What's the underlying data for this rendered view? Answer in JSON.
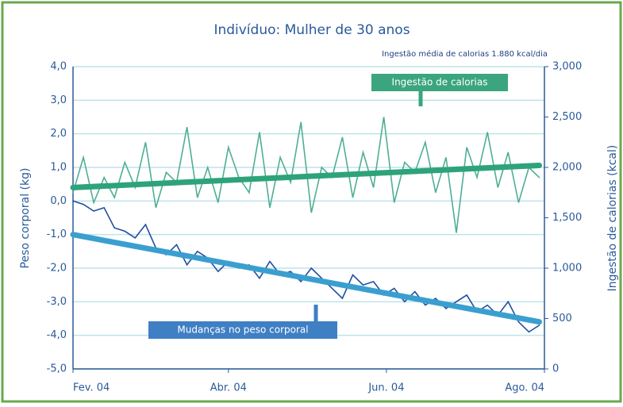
{
  "chart_data": {
    "type": "line",
    "title": "Indivíduo: Mulher de 30 anos",
    "subtitle": "Ingestão média de calorias 1.880 kcal/dia",
    "y_label": "Peso corporal (kg)",
    "y2_label": "Ingestão de calorias (kcal)",
    "x": [
      0,
      4,
      8,
      12,
      16,
      20,
      24,
      28,
      32,
      36,
      40,
      44,
      48,
      52,
      56,
      60,
      64,
      68,
      72,
      76,
      80,
      84,
      88,
      92,
      96,
      100,
      104,
      108,
      112,
      116,
      120,
      124,
      128,
      132,
      136,
      140,
      144,
      148,
      152,
      156,
      160,
      164,
      168,
      172,
      176,
      180
    ],
    "xlim": [
      0,
      182
    ],
    "xticks": [
      {
        "value": 0,
        "label": "Fev. 04"
      },
      {
        "value": 60,
        "label": "Abr. 04"
      },
      {
        "value": 121,
        "label": "Jun. 04"
      },
      {
        "value": 182,
        "label": "Ago. 04"
      }
    ],
    "ylim": [
      -5,
      4
    ],
    "yticks": [
      {
        "value": -5,
        "label": "-5,0"
      },
      {
        "value": -4,
        "label": "-4,0"
      },
      {
        "value": -3,
        "label": "-3,0"
      },
      {
        "value": -2,
        "label": "-2,0"
      },
      {
        "value": -1,
        "label": "-1,0"
      },
      {
        "value": 0,
        "label": "0,0"
      },
      {
        "value": 1,
        "label": "1,0"
      },
      {
        "value": 2,
        "label": "2,0"
      },
      {
        "value": 3,
        "label": "3,0"
      },
      {
        "value": 4,
        "label": "4,0"
      }
    ],
    "y2lim": [
      0,
      3000
    ],
    "y2ticks": [
      0,
      {
        "value": 500,
        "label": "500"
      },
      {
        "value": 1000,
        "label": "1,000"
      },
      {
        "value": 1500,
        "label": "1,500"
      },
      {
        "value": 2000,
        "label": "2,000"
      },
      {
        "value": 2500,
        "label": "2,500"
      },
      {
        "value": 3000,
        "label": "3,000"
      }
    ],
    "grid": true,
    "series": [
      {
        "name": "Mudanças no peso corporal",
        "color": "#1f4f9f",
        "values": [
          0,
          -0.1,
          -0.3,
          -0.2,
          -0.8,
          -0.9,
          -1.1,
          -0.7,
          -1.4,
          -1.6,
          -1.3,
          -1.9,
          -1.5,
          -1.7,
          -2.1,
          -1.8,
          -2.0,
          -1.9,
          -2.3,
          -1.8,
          -2.2,
          -2.1,
          -2.4,
          -2.0,
          -2.3,
          -2.6,
          -2.9,
          -2.2,
          -2.5,
          -2.4,
          -2.8,
          -2.6,
          -3.0,
          -2.7,
          -3.1,
          -2.9,
          -3.2,
          -3.0,
          -2.8,
          -3.3,
          -3.1,
          -3.4,
          -3.0,
          -3.6,
          -3.9,
          -3.7
        ]
      },
      {
        "name": "Ingestão de calorias",
        "color": "#4fae96",
        "axis": "y2",
        "values": [
          1750,
          2100,
          1650,
          1900,
          1700,
          2050,
          1800,
          2250,
          1600,
          1950,
          1850,
          2400,
          1700,
          2000,
          1650,
          2200,
          1900,
          1750,
          2350,
          1600,
          2100,
          1850,
          2450,
          1550,
          2000,
          1900,
          2300,
          1700,
          2150,
          1800,
          2500,
          1650,
          2050,
          1950,
          2250,
          1750,
          2100,
          1350,
          2200,
          1900,
          2350,
          1800,
          2150,
          1650,
          2000,
          1900
        ]
      },
      {
        "color": "#3a9fd0",
        "x": [
          0,
          180
        ],
        "values": [
          -1.0,
          -3.6
        ]
      },
      {
        "color": "#2ea37a",
        "axis": "y2",
        "x": [
          0,
          180
        ],
        "values": [
          1800,
          2020
        ]
      }
    ]
  }
}
